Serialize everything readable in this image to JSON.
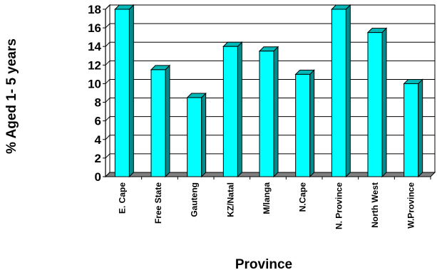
{
  "chart_data": {
    "type": "bar",
    "title": "",
    "xlabel": "Province",
    "ylabel": "% Aged 1- 5 years",
    "ylim": [
      0,
      18
    ],
    "yticks": [
      0,
      2,
      4,
      6,
      8,
      10,
      12,
      14,
      16,
      18
    ],
    "grid": true,
    "legend": "none",
    "categories": [
      "E. Cape",
      "Free State",
      "Gauteng",
      "KZ/Natal",
      "M/langa",
      "N.Cape",
      "N. Province",
      "North West",
      "W.Province"
    ],
    "values": [
      18,
      11.5,
      8.5,
      14,
      13.5,
      11,
      18,
      15.5,
      10
    ],
    "colors": {
      "bar_front": "#00ffff",
      "bar_side": "#008c8c",
      "bar_top": "#00b8b8",
      "floor": "#808080",
      "wall": "#ffffff"
    }
  }
}
